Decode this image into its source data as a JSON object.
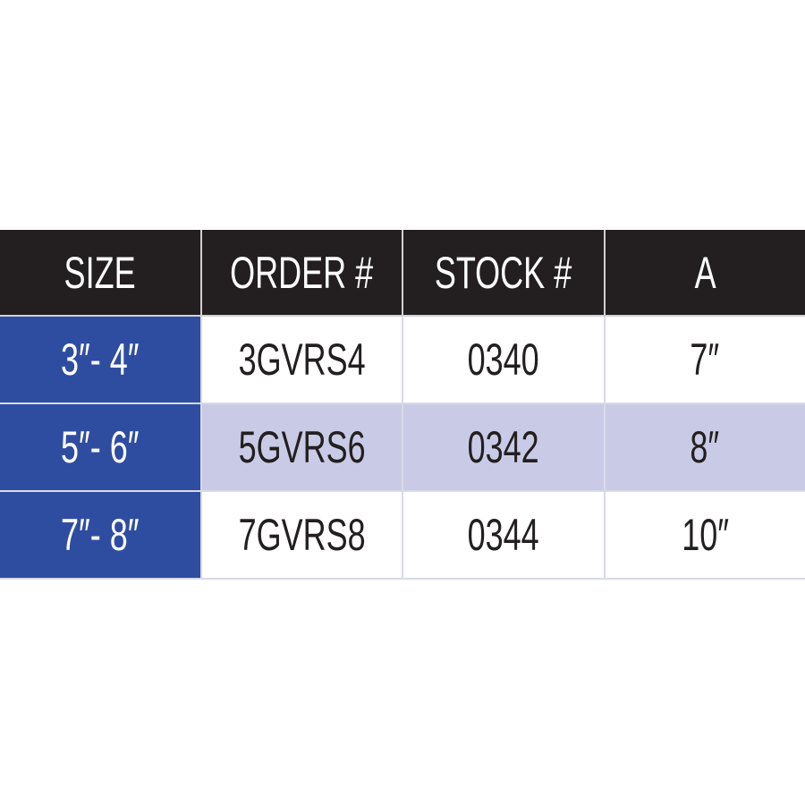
{
  "colors": {
    "header_bg": "#231f20",
    "size_bg": "#2f4da0",
    "alt_row_bg": "#c9cbe6",
    "row_bg": "#ffffff"
  },
  "headers": [
    "SIZE",
    "ORDER #",
    "STOCK #",
    "A"
  ],
  "rows": [
    [
      "3″- 4″",
      "3GVRS4",
      "0340",
      "7″"
    ],
    [
      "5″- 6″",
      "5GVRS6",
      "0342",
      "8″"
    ],
    [
      "7″- 8″",
      "7GVRS8",
      "0344",
      "10″"
    ]
  ]
}
